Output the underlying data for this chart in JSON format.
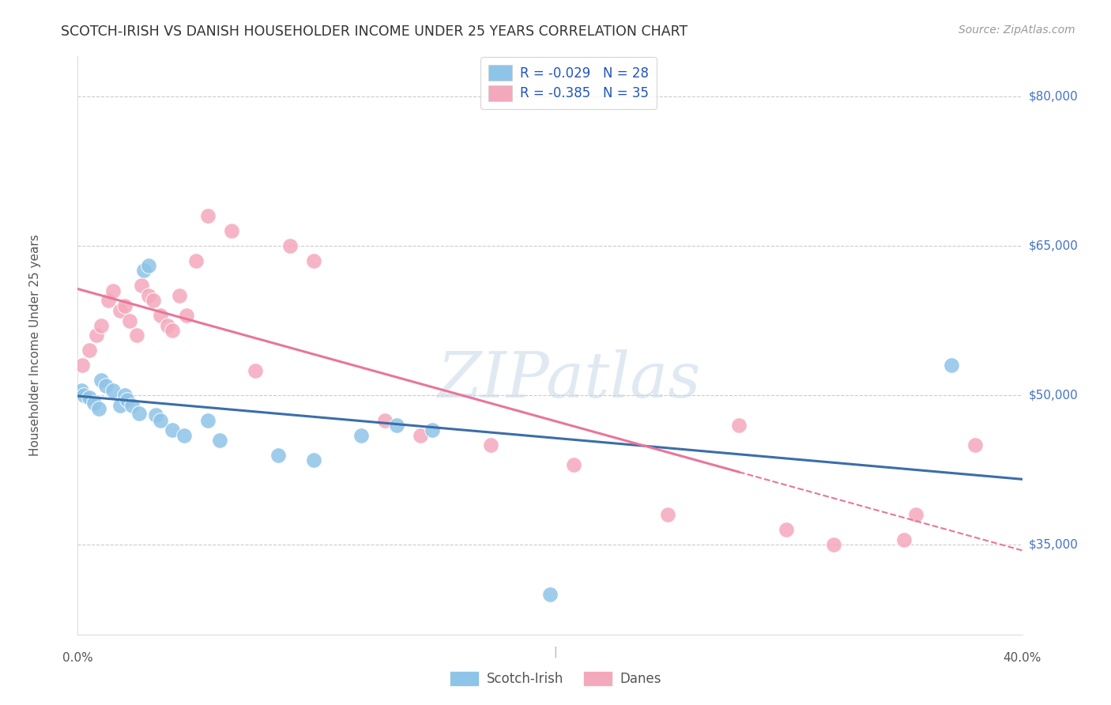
{
  "title": "SCOTCH-IRISH VS DANISH HOUSEHOLDER INCOME UNDER 25 YEARS CORRELATION CHART",
  "source": "Source: ZipAtlas.com",
  "ylabel": "Householder Income Under 25 years",
  "ytick_labels": [
    "$35,000",
    "$50,000",
    "$65,000",
    "$80,000"
  ],
  "ytick_values": [
    35000,
    50000,
    65000,
    80000
  ],
  "legend_bottom": [
    "Scotch-Irish",
    "Danes"
  ],
  "legend_line1": "R = -0.029   N = 28",
  "legend_line2": "R = -0.385   N = 35",
  "scotch_irish_x": [
    0.15,
    0.25,
    0.5,
    0.7,
    0.9,
    1.0,
    1.2,
    1.5,
    1.8,
    2.0,
    2.1,
    2.3,
    2.6,
    2.8,
    3.0,
    3.3,
    3.5,
    4.0,
    4.5,
    5.5,
    6.0,
    8.5,
    10.0,
    12.0,
    13.5,
    15.0,
    20.0,
    37.0
  ],
  "scotch_irish_y": [
    50500,
    50000,
    49800,
    49200,
    48700,
    51500,
    51000,
    50500,
    49000,
    50000,
    49500,
    49000,
    48200,
    62500,
    63000,
    48000,
    47500,
    46500,
    46000,
    47500,
    45500,
    44000,
    43500,
    46000,
    47000,
    46500,
    30000,
    53000
  ],
  "danes_x": [
    0.2,
    0.5,
    0.8,
    1.0,
    1.3,
    1.5,
    1.8,
    2.0,
    2.2,
    2.5,
    2.7,
    3.0,
    3.2,
    3.5,
    3.8,
    4.0,
    4.3,
    4.6,
    5.0,
    5.5,
    6.5,
    7.5,
    9.0,
    10.0,
    13.0,
    14.5,
    17.5,
    21.0,
    25.0,
    28.0,
    30.0,
    32.0,
    35.0,
    35.5,
    38.0
  ],
  "danes_y": [
    53000,
    54500,
    56000,
    57000,
    59500,
    60500,
    58500,
    59000,
    57500,
    56000,
    61000,
    60000,
    59500,
    58000,
    57000,
    56500,
    60000,
    58000,
    63500,
    68000,
    66500,
    52500,
    65000,
    63500,
    47500,
    46000,
    45000,
    43000,
    38000,
    47000,
    36500,
    35000,
    35500,
    38000,
    45000
  ],
  "scotch_irish_color": "#8ec4e8",
  "danes_color": "#f4a8bc",
  "scotch_irish_line_color": "#3b6ea8",
  "danes_line_color": "#e8769a",
  "xmin": 0.0,
  "xmax": 40.0,
  "ymin": 26000,
  "ymax": 84000,
  "background_color": "#ffffff",
  "watermark": "ZIPatlas",
  "dane_solid_end": 28.0
}
